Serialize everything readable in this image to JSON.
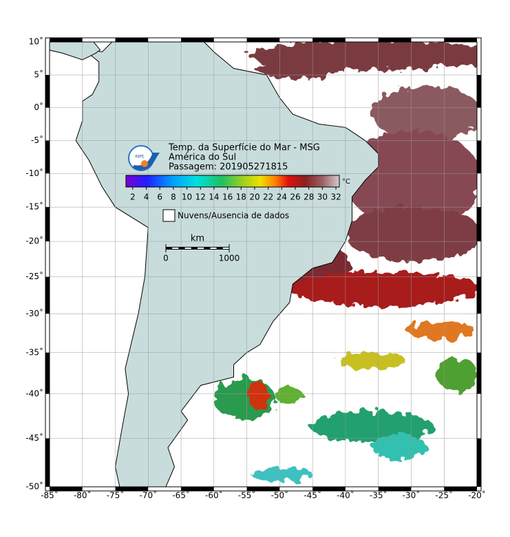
{
  "map": {
    "title_lines": [
      "Temp. da Superfície do Mar - MSG",
      "América do Sul",
      "Passagem: 201905271815"
    ],
    "logo_text": "INPE",
    "lon_lim": [
      -85,
      -20
    ],
    "lat_lim": [
      10,
      -50
    ],
    "lon_ticks": [
      {
        "value": -85,
        "label": "-85˚"
      },
      {
        "value": -80,
        "label": "-80˚"
      },
      {
        "value": -75,
        "label": "-75˚"
      },
      {
        "value": -70,
        "label": "-70˚"
      },
      {
        "value": -65,
        "label": "-65˚"
      },
      {
        "value": -60,
        "label": "-60˚"
      },
      {
        "value": -55,
        "label": "-55˚"
      },
      {
        "value": -50,
        "label": "-50˚"
      },
      {
        "value": -45,
        "label": "-45˚"
      },
      {
        "value": -40,
        "label": "-40˚"
      },
      {
        "value": -35,
        "label": "-35˚"
      },
      {
        "value": -30,
        "label": "-30˚"
      },
      {
        "value": -25,
        "label": "-25˚"
      },
      {
        "value": -20,
        "label": "-20˚"
      }
    ],
    "lat_ticks": [
      {
        "value": 10,
        "label": "10˚"
      },
      {
        "value": 5,
        "label": "5˚"
      },
      {
        "value": 0,
        "label": "0˚"
      },
      {
        "value": -5,
        "label": "-5˚"
      },
      {
        "value": -10,
        "label": "-10˚"
      },
      {
        "value": -15,
        "label": "-15˚"
      },
      {
        "value": -20,
        "label": "-20˚"
      },
      {
        "value": -25,
        "label": "-25˚"
      },
      {
        "value": -30,
        "label": "-30˚"
      },
      {
        "value": -35,
        "label": "-35˚"
      },
      {
        "value": -40,
        "label": "-40˚"
      },
      {
        "value": -45,
        "label": "-45˚"
      },
      {
        "value": -50,
        "label": "-50˚"
      }
    ],
    "colorbar": {
      "lim": [
        1,
        32.5
      ],
      "ticks": [
        2,
        4,
        6,
        8,
        10,
        12,
        14,
        16,
        18,
        20,
        22,
        24,
        26,
        28,
        30,
        32
      ],
      "unit": "°C"
    },
    "legend": "Nuvens/Ausencia de dados",
    "scale_bar": {
      "unit": "km",
      "ticks": [
        0,
        1000
      ]
    }
  }
}
